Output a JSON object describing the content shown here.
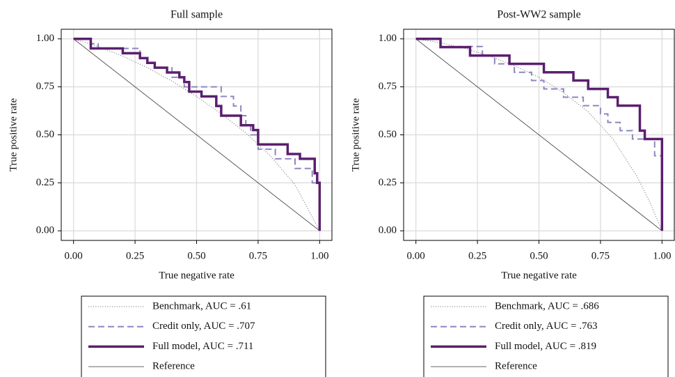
{
  "chart_data": [
    {
      "type": "line",
      "title": "Full sample",
      "xlabel": "True negative rate",
      "ylabel": "True positive rate",
      "xlim": [
        -0.05,
        1.05
      ],
      "ylim": [
        -0.05,
        1.05
      ],
      "xticks": [
        {
          "value": 0,
          "label": "0.00"
        },
        0.25,
        {
          "value": 0.5,
          "label": "0.50"
        },
        0.75,
        {
          "value": 1,
          "label": "1.00"
        }
      ],
      "yticks": [
        {
          "value": 0,
          "label": "0.00"
        },
        0.25,
        {
          "value": 0.5,
          "label": "0.50"
        },
        0.75,
        {
          "value": 1,
          "label": "1.00"
        }
      ],
      "grid": true,
      "series": [
        {
          "name": "Benchmark, AUC = .61",
          "color": "#7a7a7a",
          "line_style": "dotted",
          "line_width": 1,
          "x": [
            0,
            0.1,
            0.2,
            0.3,
            0.4,
            0.5,
            0.6,
            0.7,
            0.8,
            0.9,
            1
          ],
          "values": [
            1,
            0.96,
            0.91,
            0.85,
            0.78,
            0.7,
            0.61,
            0.51,
            0.39,
            0.24,
            0
          ]
        },
        {
          "name": "Credit only, AUC = .707",
          "color": "#8e86c0",
          "line_style": "dashed",
          "line_width": 2,
          "x": [
            0,
            0.07,
            0.07,
            0.1,
            0.1,
            0.27,
            0.27,
            0.3,
            0.3,
            0.33,
            0.33,
            0.4,
            0.4,
            0.45,
            0.45,
            0.6,
            0.6,
            0.65,
            0.65,
            0.68,
            0.68,
            0.7,
            0.7,
            0.72,
            0.72,
            0.75,
            0.75,
            0.82,
            0.82,
            0.9,
            0.9,
            0.97,
            0.97,
            1,
            1
          ],
          "values": [
            1,
            1,
            0.975,
            0.975,
            0.95,
            0.95,
            0.9,
            0.9,
            0.875,
            0.875,
            0.85,
            0.85,
            0.8,
            0.8,
            0.75,
            0.75,
            0.7,
            0.7,
            0.65,
            0.65,
            0.6,
            0.6,
            0.55,
            0.55,
            0.5,
            0.5,
            0.425,
            0.425,
            0.375,
            0.375,
            0.325,
            0.325,
            0.25,
            0.25,
            0
          ]
        },
        {
          "name": "Full model, AUC = .711",
          "color": "#5b1f6e",
          "line_style": "solid",
          "line_width": 3.5,
          "x": [
            0,
            0.07,
            0.07,
            0.2,
            0.2,
            0.27,
            0.27,
            0.3,
            0.3,
            0.33,
            0.33,
            0.38,
            0.38,
            0.43,
            0.43,
            0.45,
            0.45,
            0.47,
            0.47,
            0.52,
            0.52,
            0.58,
            0.58,
            0.6,
            0.6,
            0.68,
            0.68,
            0.73,
            0.73,
            0.75,
            0.75,
            0.87,
            0.87,
            0.92,
            0.92,
            0.98,
            0.98,
            0.99,
            0.99,
            1,
            1
          ],
          "values": [
            1,
            1,
            0.95,
            0.95,
            0.925,
            0.925,
            0.9,
            0.9,
            0.875,
            0.875,
            0.85,
            0.85,
            0.825,
            0.825,
            0.8,
            0.8,
            0.775,
            0.775,
            0.725,
            0.725,
            0.7,
            0.7,
            0.65,
            0.65,
            0.6,
            0.6,
            0.55,
            0.55,
            0.525,
            0.525,
            0.45,
            0.45,
            0.4,
            0.4,
            0.375,
            0.375,
            0.3,
            0.3,
            0.25,
            0.25,
            0
          ]
        },
        {
          "name": "Reference",
          "color": "#333333",
          "line_style": "solid",
          "line_width": 0.8,
          "x": [
            0,
            1
          ],
          "values": [
            1,
            0
          ]
        }
      ]
    },
    {
      "type": "line",
      "title": "Post-WW2 sample",
      "xlabel": "True negative rate",
      "ylabel": "True positive rate",
      "xlim": [
        -0.05,
        1.05
      ],
      "ylim": [
        -0.05,
        1.05
      ],
      "xticks": [
        {
          "value": 0,
          "label": "0.00"
        },
        0.25,
        {
          "value": 0.5,
          "label": "0.50"
        },
        0.75,
        {
          "value": 1,
          "label": "1.00"
        }
      ],
      "yticks": [
        {
          "value": 0,
          "label": "0.00"
        },
        0.25,
        {
          "value": 0.5,
          "label": "0.50"
        },
        0.75,
        {
          "value": 1,
          "label": "1.00"
        }
      ],
      "grid": true,
      "series": [
        {
          "name": "Benchmark, AUC = .686",
          "color": "#7a7a7a",
          "line_style": "dotted",
          "line_width": 1,
          "x": [
            0,
            0.1,
            0.2,
            0.3,
            0.4,
            0.5,
            0.6,
            0.7,
            0.8,
            0.9,
            0.95,
            1
          ],
          "values": [
            1,
            0.98,
            0.95,
            0.91,
            0.86,
            0.8,
            0.72,
            0.62,
            0.48,
            0.28,
            0.15,
            0
          ]
        },
        {
          "name": "Credit only, AUC = .763",
          "color": "#8e86c0",
          "line_style": "dashed",
          "line_width": 2,
          "x": [
            0,
            0.1,
            0.1,
            0.27,
            0.27,
            0.32,
            0.32,
            0.4,
            0.4,
            0.47,
            0.47,
            0.52,
            0.52,
            0.6,
            0.6,
            0.68,
            0.68,
            0.75,
            0.75,
            0.78,
            0.78,
            0.83,
            0.83,
            0.88,
            0.88,
            0.97,
            0.97,
            1,
            1
          ],
          "values": [
            1,
            1,
            0.96,
            0.96,
            0.913,
            0.913,
            0.87,
            0.87,
            0.826,
            0.826,
            0.783,
            0.783,
            0.739,
            0.739,
            0.696,
            0.696,
            0.652,
            0.652,
            0.609,
            0.609,
            0.565,
            0.565,
            0.522,
            0.522,
            0.478,
            0.478,
            0.391,
            0.391,
            0
          ]
        },
        {
          "name": "Full model, AUC = .819",
          "color": "#5b1f6e",
          "line_style": "solid",
          "line_width": 3.5,
          "x": [
            0,
            0.1,
            0.1,
            0.22,
            0.22,
            0.38,
            0.38,
            0.52,
            0.52,
            0.64,
            0.64,
            0.7,
            0.7,
            0.78,
            0.78,
            0.82,
            0.82,
            0.91,
            0.91,
            0.93,
            0.93,
            1,
            1
          ],
          "values": [
            1,
            1,
            0.957,
            0.957,
            0.913,
            0.913,
            0.87,
            0.87,
            0.826,
            0.826,
            0.783,
            0.783,
            0.739,
            0.739,
            0.696,
            0.696,
            0.652,
            0.652,
            0.522,
            0.522,
            0.478,
            0.478,
            0
          ]
        },
        {
          "name": "Reference",
          "color": "#333333",
          "line_style": "solid",
          "line_width": 0.8,
          "x": [
            0,
            1
          ],
          "values": [
            1,
            0
          ]
        }
      ]
    }
  ]
}
